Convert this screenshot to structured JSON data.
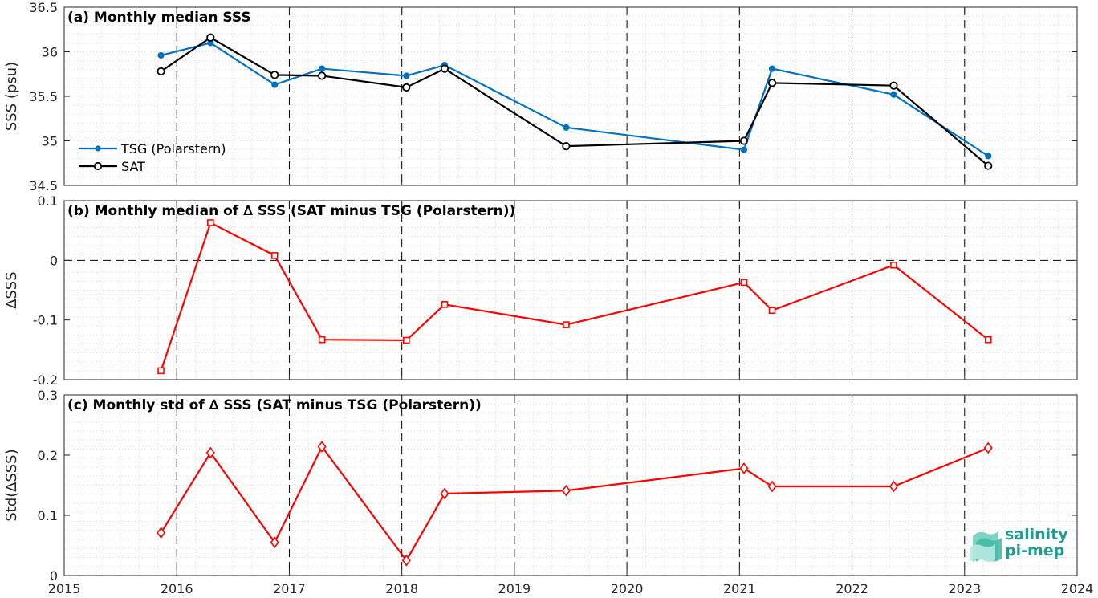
{
  "chart_data": [
    {
      "type": "line",
      "title": "(a) Monthly median SSS",
      "ylabel": "SSS (psu)",
      "ylim": [
        34.5,
        36.5
      ],
      "yticks": [
        "34.5",
        "35",
        "35.5",
        "36",
        "36.5"
      ],
      "xlim": [
        2015,
        2024
      ],
      "grid": "dotted minor grid, dashed yearly lines",
      "legend": "left",
      "series": [
        {
          "name": "TSG (Polarstern)",
          "color": "#0072bd",
          "marker": "dot",
          "x": [
            2015.86,
            2016.3,
            2016.87,
            2017.29,
            2018.04,
            2018.38,
            2019.46,
            2021.04,
            2021.29,
            2022.37,
            2023.21
          ],
          "y": [
            35.96,
            36.1,
            35.63,
            35.81,
            35.73,
            35.85,
            35.15,
            34.9,
            35.81,
            35.52,
            34.83
          ]
        },
        {
          "name": "SAT",
          "color": "#000000",
          "marker": "circle",
          "x": [
            2015.86,
            2016.3,
            2016.87,
            2017.29,
            2018.04,
            2018.38,
            2019.46,
            2021.04,
            2021.29,
            2022.37,
            2023.21
          ],
          "y": [
            35.78,
            36.16,
            35.74,
            35.73,
            35.6,
            35.81,
            34.94,
            35.0,
            35.65,
            35.62,
            34.72
          ]
        }
      ]
    },
    {
      "type": "line",
      "title": "(b) Monthly median of ∆ SSS (SAT minus TSG (Polarstern))",
      "ylabel": "∆SSS",
      "ylim": [
        -0.2,
        0.1
      ],
      "yticks": [
        "-0.2",
        "-0.1",
        "0",
        "0.1"
      ],
      "xlim": [
        2015,
        2024
      ],
      "zero_line": true,
      "series": [
        {
          "color": "#ff0000",
          "marker": "square",
          "x": [
            2015.86,
            2016.3,
            2016.87,
            2017.29,
            2018.04,
            2018.38,
            2019.46,
            2021.04,
            2021.29,
            2022.37,
            2023.21
          ],
          "y": [
            -0.185,
            0.063,
            0.008,
            -0.133,
            -0.134,
            -0.074,
            -0.108,
            -0.037,
            -0.084,
            -0.008,
            -0.133
          ]
        }
      ]
    },
    {
      "type": "line",
      "title": "(c) Monthly std of ∆ SSS (SAT minus TSG (Polarstern))",
      "ylabel": "Std(∆SSS)",
      "ylim": [
        0,
        0.3
      ],
      "yticks": [
        "0",
        "0.1",
        "0.2",
        "0.3"
      ],
      "xlim": [
        2015,
        2024
      ],
      "xticks": [
        "2015",
        "2016",
        "2017",
        "2018",
        "2019",
        "2020",
        "2021",
        "2022",
        "2023",
        "2024"
      ],
      "series": [
        {
          "color": "#ff0000",
          "marker": "diamond",
          "x": [
            2015.86,
            2016.3,
            2016.87,
            2017.29,
            2018.04,
            2018.38,
            2019.46,
            2021.04,
            2021.29,
            2022.37,
            2023.21
          ],
          "y": [
            0.071,
            0.204,
            0.055,
            0.214,
            0.025,
            0.136,
            0.141,
            0.178,
            0.148,
            0.148,
            0.212
          ]
        }
      ]
    }
  ],
  "logo": {
    "line1": "salinity",
    "line2": "pi-mep",
    "color": "#1f9e8f"
  }
}
